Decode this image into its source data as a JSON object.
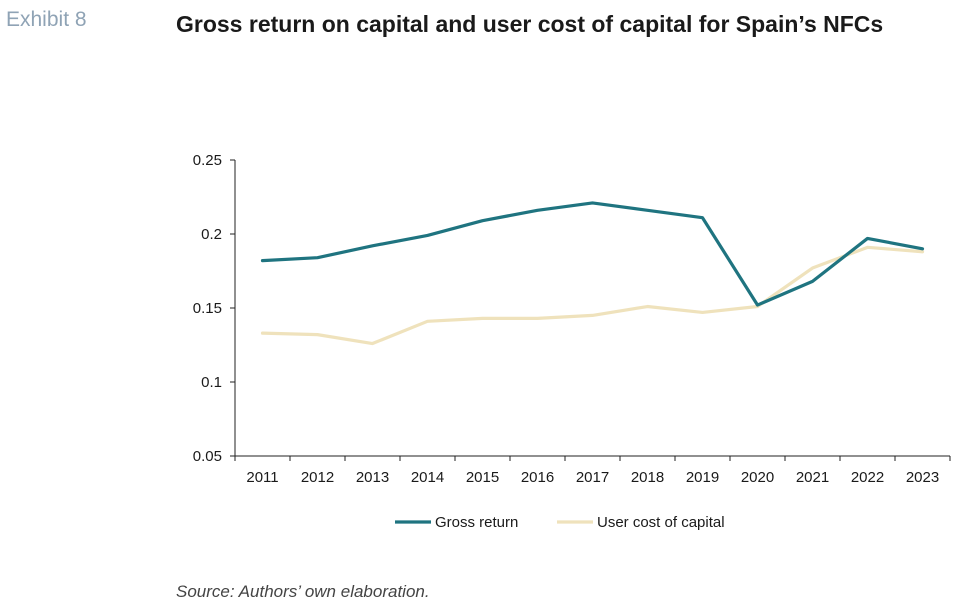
{
  "header": {
    "exhibit_label": "Exhibit 8",
    "title": "Gross return on capital and user cost of capital for Spain’s NFCs"
  },
  "footer": {
    "source": "Source: Authors’ own elaboration."
  },
  "chart_data": {
    "type": "line",
    "title": "Gross return on capital and user cost of capital for Spain’s NFCs",
    "xlabel": "",
    "ylabel": "",
    "categories": [
      "2011",
      "2012",
      "2013",
      "2014",
      "2015",
      "2016",
      "2017",
      "2018",
      "2019",
      "2020",
      "2021",
      "2022",
      "2023"
    ],
    "ylim": [
      0.05,
      0.25
    ],
    "yticks": [
      0.05,
      0.1,
      0.15,
      0.2,
      0.25
    ],
    "ytick_labels": [
      "0.05",
      "0.1",
      "0.15",
      "0.2",
      "0.25"
    ],
    "grid": false,
    "legend_position": "bottom",
    "series": [
      {
        "name": "Gross return",
        "color": "#1f7480",
        "values": [
          0.182,
          0.184,
          0.192,
          0.199,
          0.209,
          0.216,
          0.221,
          0.216,
          0.211,
          0.152,
          0.168,
          0.197,
          0.19
        ]
      },
      {
        "name": "User cost of capital",
        "color": "#efe2bc",
        "values": [
          0.133,
          0.132,
          0.126,
          0.141,
          0.143,
          0.143,
          0.145,
          0.151,
          0.147,
          0.151,
          0.177,
          0.191,
          0.188
        ]
      }
    ]
  }
}
